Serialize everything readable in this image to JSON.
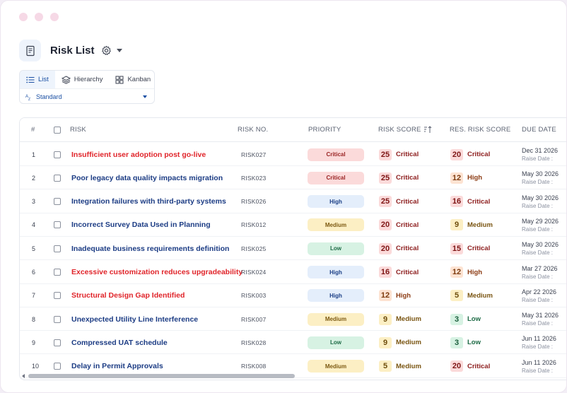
{
  "window": {
    "dot_color": "#f6d9e6"
  },
  "header": {
    "title": "Risk List",
    "icons": [
      "document-icon",
      "gear-icon",
      "caret-down-icon"
    ]
  },
  "views": {
    "tabs": [
      {
        "label": "List",
        "icon": "list-icon",
        "active": true
      },
      {
        "label": "Hierarchy",
        "icon": "layers-icon",
        "active": false
      },
      {
        "label": "Kanban",
        "icon": "kanban-icon",
        "active": false
      }
    ],
    "preset_label": "Standard"
  },
  "table": {
    "columns": {
      "num": "#",
      "risk": "RISK",
      "risk_no": "RISK NO.",
      "priority": "PRIORITY",
      "risk_score": "RISK SCORE",
      "res_risk_score": "RES. RISK SCORE",
      "due_date": "DUE DATE"
    },
    "raise_label": "Raise Date :",
    "rows": [
      {
        "n": "1",
        "risk": "Insufficient user adoption post go-live",
        "red": true,
        "no": "RISK027",
        "priority": "Critical",
        "score": "25",
        "score_level": "Critical",
        "res": "20",
        "res_level": "Critical",
        "due": "Dec 31 2026"
      },
      {
        "n": "2",
        "risk": "Poor legacy data quality impacts migration",
        "red": false,
        "no": "RISK023",
        "priority": "Critical",
        "score": "25",
        "score_level": "Critical",
        "res": "12",
        "res_level": "High",
        "due": "May 30 2026"
      },
      {
        "n": "3",
        "risk": "Integration failures with third-party systems",
        "red": false,
        "no": "RISK026",
        "priority": "High",
        "score": "25",
        "score_level": "Critical",
        "res": "16",
        "res_level": "Critical",
        "due": "May 30 2026"
      },
      {
        "n": "4",
        "risk": "Incorrect Survey Data Used in Planning",
        "red": false,
        "no": "RISK012",
        "priority": "Medium",
        "score": "20",
        "score_level": "Critical",
        "res": "9",
        "res_level": "Medium",
        "due": "May 29 2026"
      },
      {
        "n": "5",
        "risk": "Inadequate business requirements definition",
        "red": false,
        "no": "RISK025",
        "priority": "Low",
        "score": "20",
        "score_level": "Critical",
        "res": "15",
        "res_level": "Critical",
        "due": "May 30 2026"
      },
      {
        "n": "6",
        "risk": "Excessive customization reduces upgradeability",
        "red": true,
        "no": "RISK024",
        "priority": "High",
        "score": "16",
        "score_level": "Critical",
        "res": "12",
        "res_level": "High",
        "due": "Mar 27 2026"
      },
      {
        "n": "7",
        "risk": "Structural Design Gap Identified",
        "red": true,
        "no": "RISK003",
        "priority": "High",
        "score": "12",
        "score_level": "High",
        "res": "5",
        "res_level": "Medium",
        "due": "Apr 22 2026"
      },
      {
        "n": "8",
        "risk": "Unexpected Utility Line Interference",
        "red": false,
        "no": "RISK007",
        "priority": "Medium",
        "score": "9",
        "score_level": "Medium",
        "res": "3",
        "res_level": "Low",
        "due": "May 31 2026"
      },
      {
        "n": "9",
        "risk": "Compressed UAT schedule",
        "red": false,
        "no": "RISK028",
        "priority": "Low",
        "score": "9",
        "score_level": "Medium",
        "res": "3",
        "res_level": "Low",
        "due": "Jun 11 2026"
      },
      {
        "n": "10",
        "risk": "Delay in Permit Approvals",
        "red": false,
        "no": "RISK008",
        "priority": "Medium",
        "score": "5",
        "score_level": "Medium",
        "res": "20",
        "res_level": "Critical",
        "due": "Jun 11 2026"
      }
    ]
  }
}
